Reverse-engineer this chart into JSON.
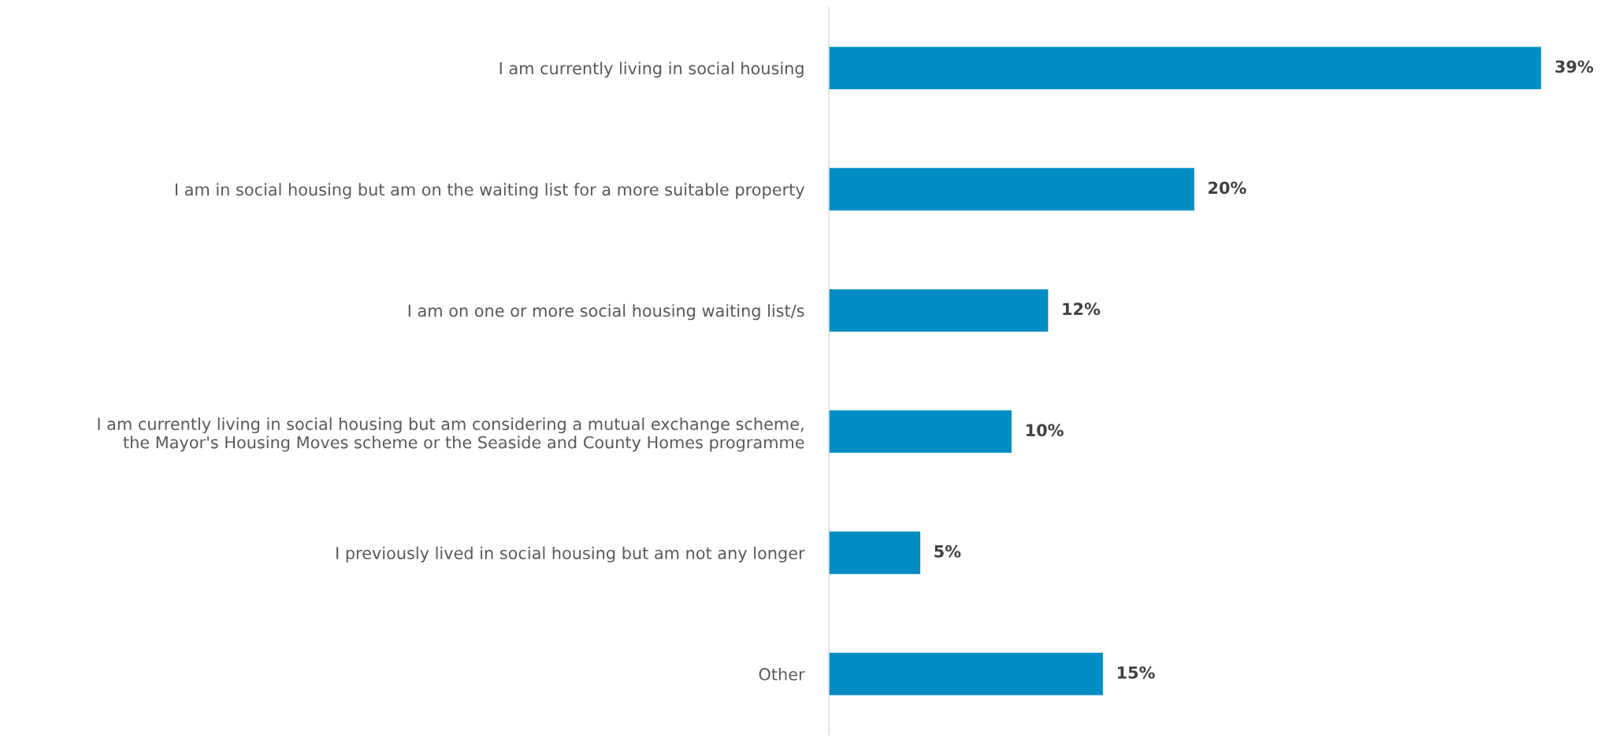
{
  "chart_data": {
    "type": "bar",
    "orientation": "horizontal",
    "categories": [
      "I am currently living in social housing",
      "I am in social housing but am on the waiting list for a more suitable property",
      "I am on one or more social housing waiting list/s",
      "I am currently living in social housing but am considering a mutual exchange scheme,\nthe Mayor's Housing Moves scheme or the Seaside and County Homes programme",
      "I previously lived in social housing but am not any longer",
      "Other"
    ],
    "values": [
      39,
      20,
      12,
      10,
      5,
      15
    ],
    "value_labels": [
      "39%",
      "20%",
      "12%",
      "10%",
      "5%",
      "15%"
    ],
    "color": "#008cc4",
    "grid": false,
    "legend": false,
    "tick_labels": "y"
  }
}
